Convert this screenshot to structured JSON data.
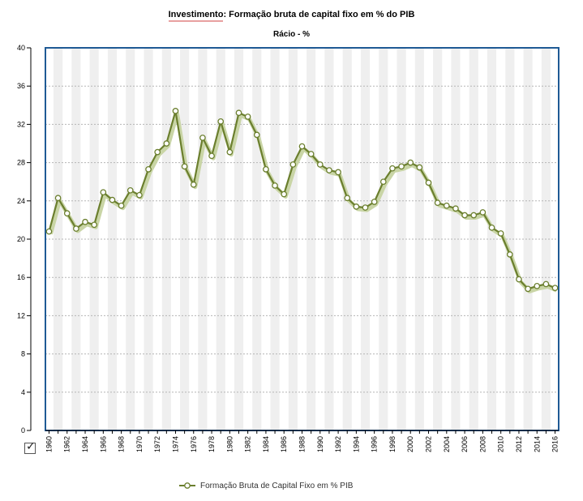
{
  "title_highlight": "Investimento",
  "title_rest": ": Formação bruta de capital fixo em % do PIB",
  "subtitle": "Rácio - %",
  "legend_label": "Formação Bruta de Capital Fixo em % PIB",
  "colors": {
    "line": "#6b7f2e",
    "shadow": "#c9d5a6",
    "frame": "#1f5a95",
    "band": "#efefef",
    "highlight": "#e8a0a0"
  },
  "chart_data": {
    "type": "line",
    "title": "Investimento: Formação bruta de capital fixo em % do PIB",
    "subtitle": "Rácio - %",
    "xlabel": "",
    "ylabel": "",
    "ylim": [
      0,
      40
    ],
    "y_ticks": [
      0,
      4,
      8,
      12,
      16,
      20,
      24,
      28,
      32,
      36,
      40
    ],
    "x_tick_labels": [
      "1960",
      "1962",
      "1964",
      "1966",
      "1968",
      "1970",
      "1972",
      "1974",
      "1976",
      "1978",
      "1980",
      "1982",
      "1984",
      "1986",
      "1988",
      "1990",
      "1992",
      "1994",
      "1996",
      "1998",
      "2000",
      "2002",
      "2004",
      "2006",
      "2008",
      "2010",
      "2012",
      "2014",
      "2016"
    ],
    "grid": true,
    "legend_position": "bottom",
    "series": [
      {
        "name": "Formação Bruta de Capital Fixo em % PIB",
        "x": [
          1960,
          1961,
          1962,
          1963,
          1964,
          1965,
          1966,
          1967,
          1968,
          1969,
          1970,
          1971,
          1972,
          1973,
          1974,
          1975,
          1976,
          1977,
          1978,
          1979,
          1980,
          1981,
          1982,
          1983,
          1984,
          1985,
          1986,
          1987,
          1988,
          1989,
          1990,
          1991,
          1992,
          1993,
          1994,
          1995,
          1996,
          1997,
          1998,
          1999,
          2000,
          2001,
          2002,
          2003,
          2004,
          2005,
          2006,
          2007,
          2008,
          2009,
          2010,
          2011,
          2012,
          2013,
          2014,
          2015,
          2016
        ],
        "values": [
          20.8,
          24.3,
          22.7,
          21.1,
          21.8,
          21.5,
          24.9,
          24.1,
          23.5,
          25.1,
          24.6,
          27.3,
          29.1,
          30.0,
          33.4,
          27.6,
          25.7,
          30.6,
          28.7,
          32.3,
          29.1,
          33.2,
          32.8,
          30.9,
          27.3,
          25.6,
          24.7,
          27.8,
          29.7,
          28.9,
          27.8,
          27.2,
          27.0,
          24.3,
          23.4,
          23.3,
          23.9,
          26.0,
          27.4,
          27.6,
          28.0,
          27.5,
          25.9,
          23.8,
          23.5,
          23.2,
          22.5,
          22.5,
          22.8,
          21.2,
          20.6,
          18.4,
          15.8,
          14.8,
          15.1,
          15.3,
          14.9
        ]
      }
    ]
  }
}
